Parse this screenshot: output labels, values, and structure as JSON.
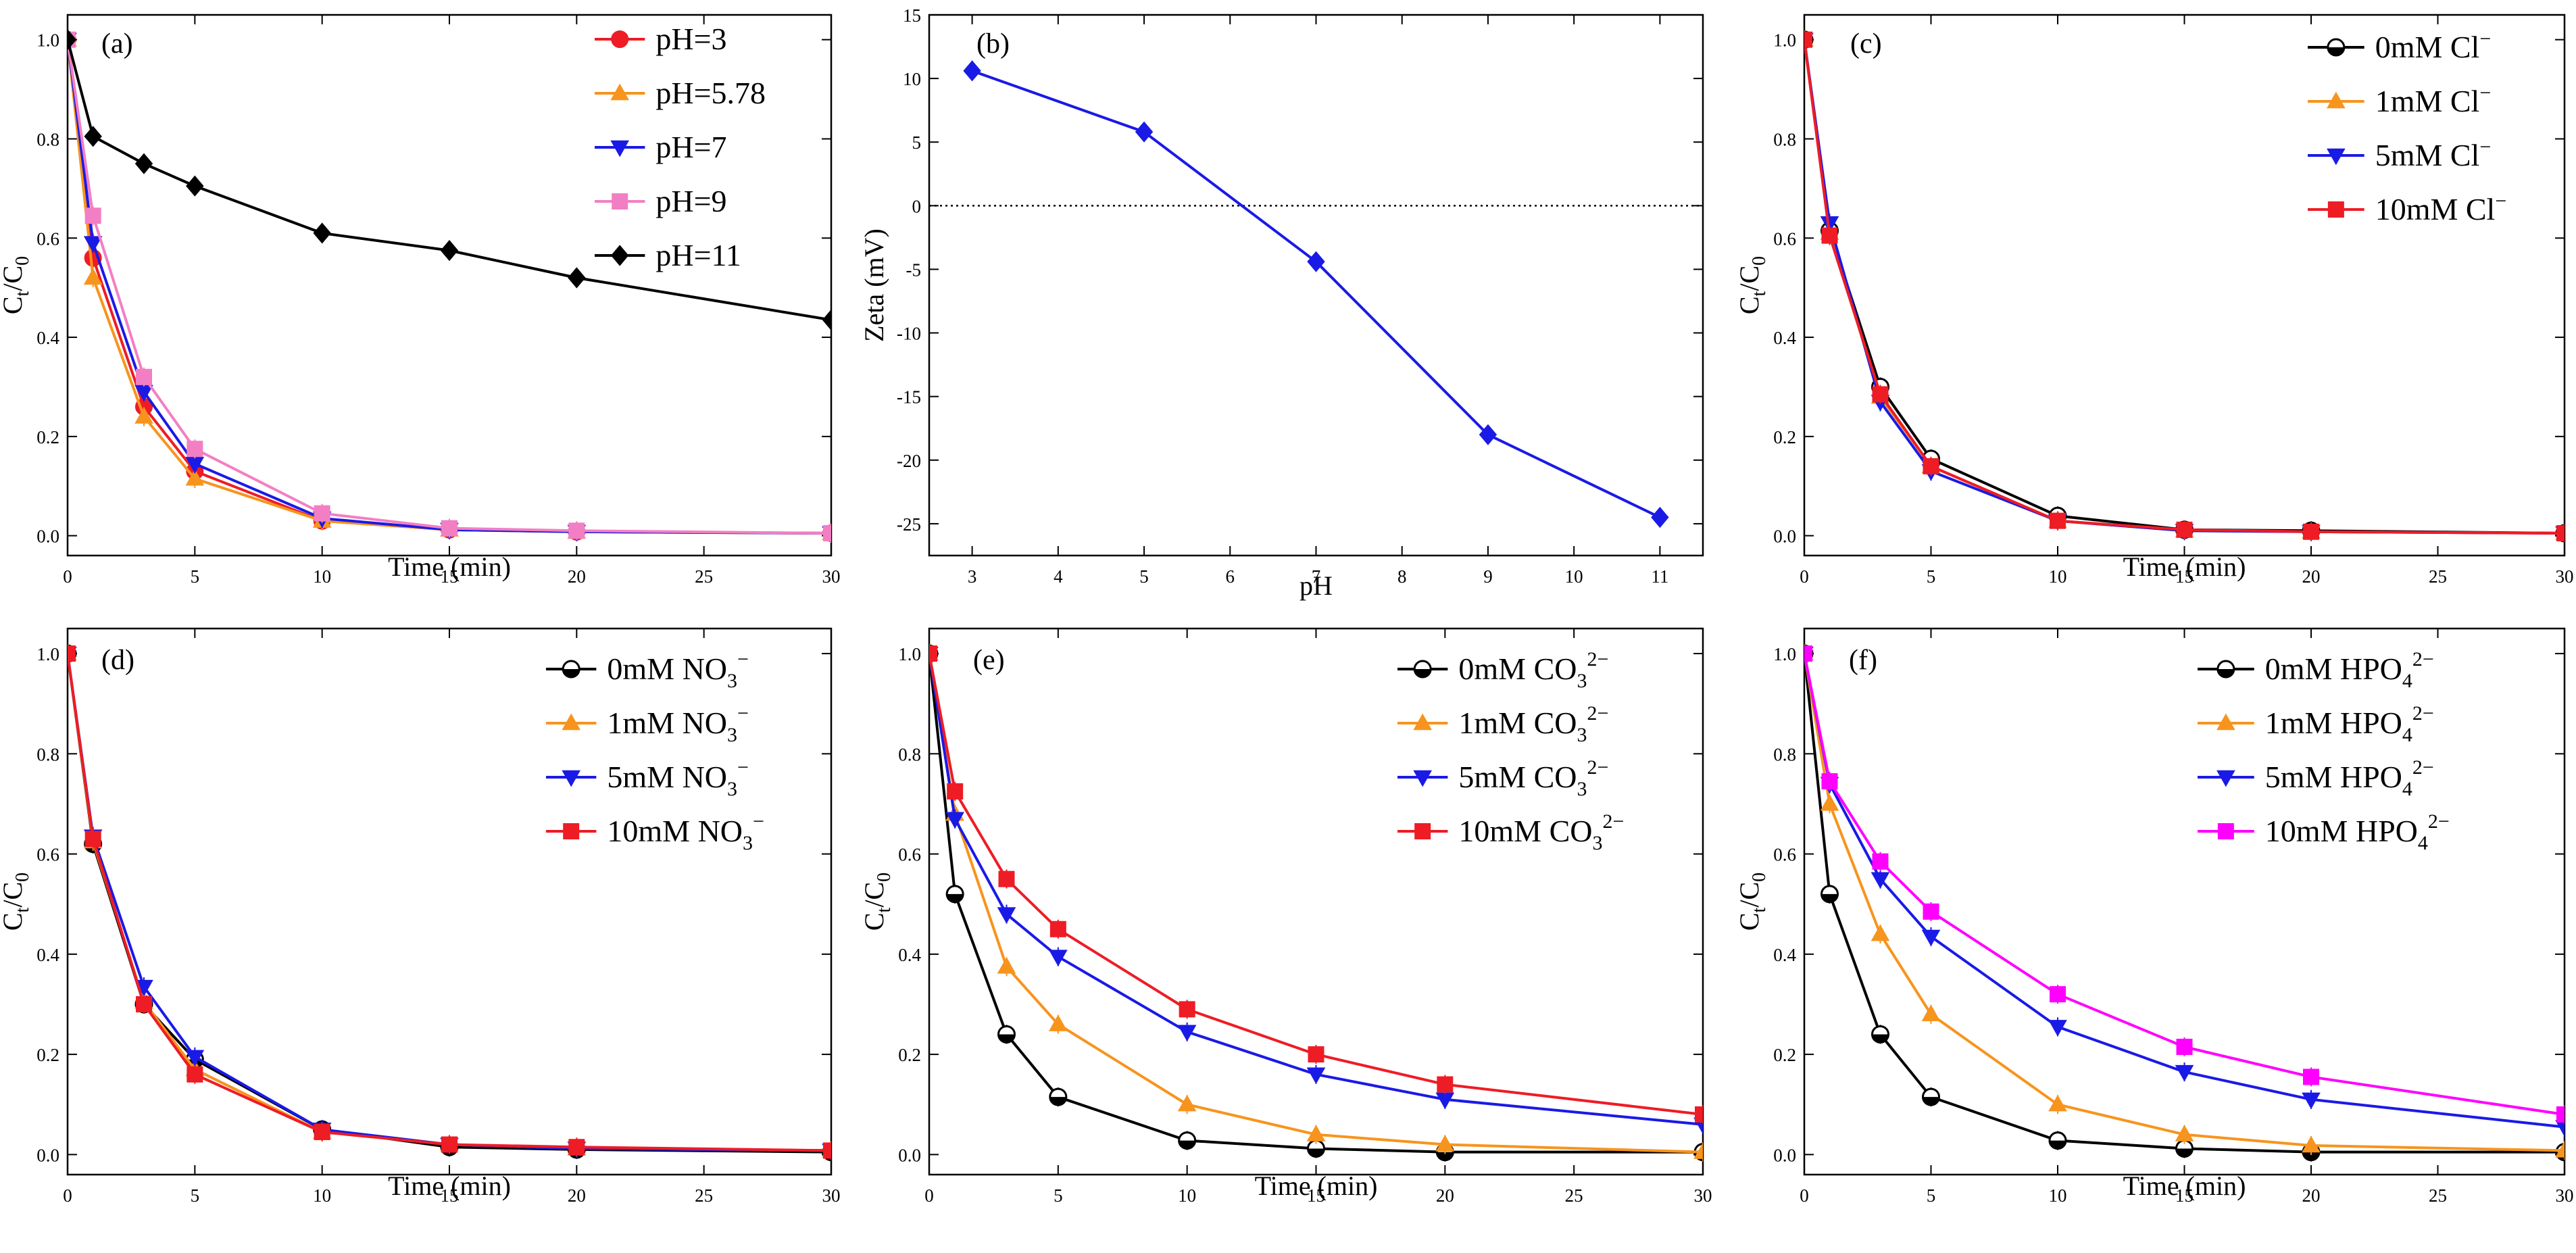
{
  "chart_data": [
    {
      "id": "a",
      "type": "line",
      "panel_label": "(a)",
      "xlabel": "Time (min)",
      "ylabel_main": "C",
      "ylabel_sub1": "t",
      "ylabel_slash": "/C",
      "ylabel_sub2": "0",
      "xlim": [
        0,
        30
      ],
      "ylim": [
        -0.04,
        1.05
      ],
      "xticks": [
        "0",
        "5",
        "10",
        "15",
        "20",
        "25",
        "30"
      ],
      "xtick_values": [
        0,
        5,
        10,
        15,
        20,
        25,
        30
      ],
      "yticks": [
        "0.0",
        "0.2",
        "0.4",
        "0.6",
        "0.8",
        "1.0"
      ],
      "ytick_values": [
        0,
        0.2,
        0.4,
        0.6,
        0.8,
        1.0
      ],
      "legend_position": "top-right",
      "series": [
        {
          "name": "pH=3",
          "label_parts": [
            "pH=3"
          ],
          "color": "#ee1c25",
          "marker": "circle",
          "x": [
            0,
            1,
            3,
            5,
            10,
            15,
            20,
            30
          ],
          "y": [
            1.0,
            0.56,
            0.26,
            0.13,
            0.03,
            0.012,
            0.008,
            0.005
          ]
        },
        {
          "name": "pH=5.78",
          "label_parts": [
            "pH=5.78"
          ],
          "color": "#f7941d",
          "marker": "triangle-up",
          "x": [
            0,
            1,
            3,
            5,
            10,
            15,
            20,
            30
          ],
          "y": [
            1.0,
            0.52,
            0.24,
            0.115,
            0.03,
            0.012,
            0.008,
            0.005
          ]
        },
        {
          "name": "pH=7",
          "label_parts": [
            "pH=7"
          ],
          "color": "#1a1ae6",
          "marker": "triangle-down",
          "x": [
            0,
            1,
            3,
            5,
            10,
            15,
            20,
            30
          ],
          "y": [
            1.0,
            0.59,
            0.29,
            0.145,
            0.035,
            0.012,
            0.008,
            0.005
          ]
        },
        {
          "name": "pH=9",
          "label_parts": [
            "pH=9"
          ],
          "color": "#f27fc3",
          "marker": "square",
          "x": [
            0,
            1,
            3,
            5,
            10,
            15,
            20,
            30
          ],
          "y": [
            1.0,
            0.645,
            0.32,
            0.175,
            0.045,
            0.015,
            0.01,
            0.005
          ]
        },
        {
          "name": "pH=11",
          "label_parts": [
            "pH=11"
          ],
          "color": "#000000",
          "marker": "diamond",
          "x": [
            0,
            1,
            3,
            5,
            10,
            15,
            20,
            30
          ],
          "y": [
            1.0,
            0.805,
            0.75,
            0.705,
            0.61,
            0.575,
            0.52,
            0.435
          ]
        }
      ]
    },
    {
      "id": "b",
      "type": "line",
      "panel_label": "(b)",
      "xlabel": "pH",
      "ylabel_main": "Zeta  (mV)",
      "xlim": [
        2.5,
        11.5
      ],
      "ylim": [
        -27.5,
        15
      ],
      "xticks": [
        "3",
        "4",
        "5",
        "6",
        "7",
        "8",
        "9",
        "10",
        "11"
      ],
      "xtick_values": [
        3,
        4,
        5,
        6,
        7,
        8,
        9,
        10,
        11
      ],
      "yticks": [
        "15",
        "10",
        "5",
        "0",
        "-5",
        "-10",
        "-15",
        "-20",
        "-25"
      ],
      "ytick_values": [
        15,
        10,
        5,
        0,
        -5,
        -10,
        -15,
        -20,
        -25
      ],
      "reference_line": 0,
      "series": [
        {
          "name": "Zeta",
          "color": "#1a1ae6",
          "marker": "diamond",
          "x": [
            3,
            5,
            7,
            9,
            11
          ],
          "y": [
            10.6,
            5.8,
            -4.4,
            -18.0,
            -24.5
          ]
        }
      ]
    },
    {
      "id": "c",
      "type": "line",
      "panel_label": "(c)",
      "xlabel": "Time (min)",
      "ylabel_main": "C",
      "ylabel_sub1": "t",
      "ylabel_slash": "/C",
      "ylabel_sub2": "0",
      "xlim": [
        0,
        30
      ],
      "ylim": [
        -0.04,
        1.05
      ],
      "xticks": [
        "0",
        "5",
        "10",
        "15",
        "20",
        "25",
        "30"
      ],
      "xtick_values": [
        0,
        5,
        10,
        15,
        20,
        25,
        30
      ],
      "yticks": [
        "0.0",
        "0.2",
        "0.4",
        "0.6",
        "0.8",
        "1.0"
      ],
      "ytick_values": [
        0,
        0.2,
        0.4,
        0.6,
        0.8,
        1.0
      ],
      "legend_position": "top-right",
      "series": [
        {
          "name": "0mM Cl−",
          "label_parts": [
            "0mM Cl",
            "",
            "−"
          ],
          "color": "#000000",
          "marker": "circle-half",
          "x": [
            0,
            1,
            3,
            5,
            10,
            15,
            20,
            30
          ],
          "y": [
            1.0,
            0.615,
            0.3,
            0.155,
            0.04,
            0.012,
            0.01,
            0.005
          ]
        },
        {
          "name": "1mM Cl−",
          "label_parts": [
            "1mM Cl",
            "",
            "−"
          ],
          "color": "#f7941d",
          "marker": "triangle-up",
          "x": [
            0,
            1,
            3,
            5,
            10,
            15,
            20,
            30
          ],
          "y": [
            1.0,
            0.61,
            0.28,
            0.14,
            0.03,
            0.01,
            0.008,
            0.005
          ]
        },
        {
          "name": "5mM Cl−",
          "label_parts": [
            "5mM Cl",
            "",
            "−"
          ],
          "color": "#1a1ae6",
          "marker": "triangle-down",
          "x": [
            0,
            1,
            3,
            5,
            10,
            15,
            20,
            30
          ],
          "y": [
            1.0,
            0.63,
            0.27,
            0.13,
            0.03,
            0.01,
            0.008,
            0.005
          ]
        },
        {
          "name": "10mM Cl−",
          "label_parts": [
            "10mM Cl",
            "",
            "−"
          ],
          "color": "#ee1c25",
          "marker": "square",
          "x": [
            0,
            1,
            3,
            5,
            10,
            15,
            20,
            30
          ],
          "y": [
            1.0,
            0.605,
            0.285,
            0.14,
            0.03,
            0.012,
            0.008,
            0.005
          ]
        }
      ]
    },
    {
      "id": "d",
      "type": "line",
      "panel_label": "(d)",
      "xlabel": "Time (min)",
      "ylabel_main": "C",
      "ylabel_sub1": "t",
      "ylabel_slash": "/C",
      "ylabel_sub2": "0",
      "xlim": [
        0,
        30
      ],
      "ylim": [
        -0.04,
        1.05
      ],
      "xticks": [
        "0",
        "5",
        "10",
        "15",
        "20",
        "25",
        "30"
      ],
      "xtick_values": [
        0,
        5,
        10,
        15,
        20,
        25,
        30
      ],
      "yticks": [
        "0.0",
        "0.2",
        "0.4",
        "0.6",
        "0.8",
        "1.0"
      ],
      "ytick_values": [
        0,
        0.2,
        0.4,
        0.6,
        0.8,
        1.0
      ],
      "legend_position": "top-right",
      "series": [
        {
          "name": "0mM NO3−",
          "label_parts": [
            "0mM NO",
            "3",
            "−"
          ],
          "color": "#000000",
          "marker": "circle-half",
          "x": [
            0,
            1,
            3,
            5,
            10,
            15,
            20,
            30
          ],
          "y": [
            1.0,
            0.62,
            0.3,
            0.19,
            0.05,
            0.015,
            0.01,
            0.005
          ]
        },
        {
          "name": "1mM NO3−",
          "label_parts": [
            "1mM NO",
            "3",
            "−"
          ],
          "color": "#f7941d",
          "marker": "triangle-up",
          "x": [
            0,
            1,
            3,
            5,
            10,
            15,
            20,
            30
          ],
          "y": [
            1.0,
            0.625,
            0.305,
            0.17,
            0.045,
            0.02,
            0.012,
            0.008
          ]
        },
        {
          "name": "5mM NO3−",
          "label_parts": [
            "5mM NO",
            "3",
            "−"
          ],
          "color": "#1a1ae6",
          "marker": "triangle-down",
          "x": [
            0,
            1,
            3,
            5,
            10,
            15,
            20,
            30
          ],
          "y": [
            1.0,
            0.635,
            0.335,
            0.195,
            0.05,
            0.02,
            0.012,
            0.008
          ]
        },
        {
          "name": "10mM NO3−",
          "label_parts": [
            "10mM NO",
            "3",
            "−"
          ],
          "color": "#ee1c25",
          "marker": "square",
          "x": [
            0,
            1,
            3,
            5,
            10,
            15,
            20,
            30
          ],
          "y": [
            1.0,
            0.63,
            0.3,
            0.16,
            0.045,
            0.02,
            0.015,
            0.008
          ]
        }
      ]
    },
    {
      "id": "e",
      "type": "line",
      "panel_label": "(e)",
      "xlabel": "Time (min)",
      "ylabel_main": "C",
      "ylabel_sub1": "t",
      "ylabel_slash": "/C",
      "ylabel_sub2": "0",
      "xlim": [
        0,
        30
      ],
      "ylim": [
        -0.04,
        1.05
      ],
      "xticks": [
        "0",
        "5",
        "10",
        "15",
        "20",
        "25",
        "30"
      ],
      "xtick_values": [
        0,
        5,
        10,
        15,
        20,
        25,
        30
      ],
      "yticks": [
        "0.0",
        "0.2",
        "0.4",
        "0.6",
        "0.8",
        "1.0"
      ],
      "ytick_values": [
        0,
        0.2,
        0.4,
        0.6,
        0.8,
        1.0
      ],
      "legend_position": "top-right",
      "series": [
        {
          "name": "0mM CO32−",
          "label_parts": [
            "0mM CO",
            "3",
            "2−"
          ],
          "color": "#000000",
          "marker": "circle-half",
          "x": [
            0,
            1,
            3,
            5,
            10,
            15,
            20,
            30
          ],
          "y": [
            1.0,
            0.52,
            0.24,
            0.115,
            0.028,
            0.012,
            0.005,
            0.005
          ]
        },
        {
          "name": "1mM CO32−",
          "label_parts": [
            "1mM CO",
            "3",
            "2−"
          ],
          "color": "#f7941d",
          "marker": "triangle-up",
          "x": [
            0,
            1,
            3,
            5,
            10,
            15,
            20,
            30
          ],
          "y": [
            1.0,
            0.68,
            0.375,
            0.26,
            0.1,
            0.04,
            0.02,
            0.005
          ]
        },
        {
          "name": "5mM CO32−",
          "label_parts": [
            "5mM CO",
            "3",
            "2−"
          ],
          "color": "#1a1ae6",
          "marker": "triangle-down",
          "x": [
            0,
            1,
            3,
            5,
            10,
            15,
            20,
            30
          ],
          "y": [
            1.0,
            0.67,
            0.48,
            0.395,
            0.245,
            0.16,
            0.11,
            0.06
          ]
        },
        {
          "name": "10mM CO32−",
          "label_parts": [
            "10mM CO",
            "3",
            "2−"
          ],
          "color": "#ee1c25",
          "marker": "square",
          "x": [
            0,
            1,
            3,
            5,
            10,
            15,
            20,
            30
          ],
          "y": [
            1.0,
            0.725,
            0.55,
            0.45,
            0.29,
            0.2,
            0.14,
            0.08
          ]
        }
      ]
    },
    {
      "id": "f",
      "type": "line",
      "panel_label": "(f)",
      "xlabel": "Time (min)",
      "ylabel_main": "C",
      "ylabel_sub1": "t",
      "ylabel_slash": "/C",
      "ylabel_sub2": "0",
      "xlim": [
        0,
        30
      ],
      "ylim": [
        -0.04,
        1.05
      ],
      "xticks": [
        "0",
        "5",
        "10",
        "15",
        "20",
        "25",
        "30"
      ],
      "xtick_values": [
        0,
        5,
        10,
        15,
        20,
        25,
        30
      ],
      "yticks": [
        "0.0",
        "0.2",
        "0.4",
        "0.6",
        "0.8",
        "1.0"
      ],
      "ytick_values": [
        0,
        0.2,
        0.4,
        0.6,
        0.8,
        1.0
      ],
      "legend_position": "top-right",
      "series": [
        {
          "name": "0mM HPO42−",
          "label_parts": [
            "0mM HPO",
            "4",
            "2−"
          ],
          "color": "#000000",
          "marker": "circle-half",
          "x": [
            0,
            1,
            3,
            5,
            10,
            15,
            20,
            30
          ],
          "y": [
            1.0,
            0.52,
            0.24,
            0.115,
            0.028,
            0.012,
            0.005,
            0.005
          ]
        },
        {
          "name": "1mM HPO42−",
          "label_parts": [
            "1mM HPO",
            "4",
            "2−"
          ],
          "color": "#f7941d",
          "marker": "triangle-up",
          "x": [
            0,
            1,
            3,
            5,
            10,
            15,
            20,
            30
          ],
          "y": [
            1.0,
            0.7,
            0.44,
            0.28,
            0.1,
            0.04,
            0.018,
            0.008
          ]
        },
        {
          "name": "5mM HPO42−",
          "label_parts": [
            "5mM HPO",
            "4",
            "2−"
          ],
          "color": "#1a1ae6",
          "marker": "triangle-down",
          "x": [
            0,
            1,
            3,
            5,
            10,
            15,
            20,
            30
          ],
          "y": [
            1.0,
            0.74,
            0.55,
            0.435,
            0.255,
            0.165,
            0.11,
            0.055
          ]
        },
        {
          "name": "10mM HPO42−",
          "label_parts": [
            "10mM HPO",
            "4",
            "2−"
          ],
          "color": "#ff00ff",
          "marker": "square",
          "x": [
            0,
            1,
            3,
            5,
            10,
            15,
            20,
            30
          ],
          "y": [
            1.0,
            0.745,
            0.585,
            0.485,
            0.32,
            0.215,
            0.155,
            0.08
          ]
        }
      ]
    }
  ]
}
